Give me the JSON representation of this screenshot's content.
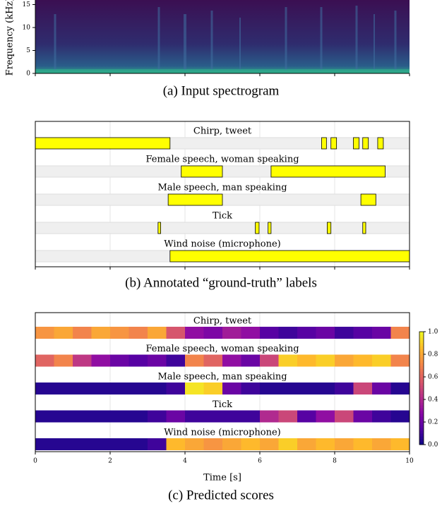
{
  "chart_data": [
    {
      "type": "spectrogram",
      "caption": "(a) Input spectrogram",
      "y_label": "Frequency (kHz)",
      "xlim": [
        0,
        10
      ],
      "xticks": [
        0,
        2,
        4,
        6,
        8,
        10
      ],
      "ylim": [
        0,
        16
      ],
      "yticks": [
        0,
        5,
        10,
        15
      ]
    },
    {
      "type": "segments",
      "caption": "(b) Annotated “ground-truth” labels",
      "color": "#ffff00",
      "xlim": [
        0,
        10
      ],
      "xticks": [
        0,
        2,
        4,
        6,
        8,
        10
      ],
      "classes": [
        {
          "name": "Chirp, tweet",
          "segments": [
            [
              0,
              3.6
            ],
            [
              7.65,
              7.78
            ],
            [
              7.9,
              8.05
            ],
            [
              8.5,
              8.65
            ],
            [
              8.75,
              8.9
            ],
            [
              9.15,
              9.3
            ]
          ]
        },
        {
          "name": "Female speech, woman speaking",
          "segments": [
            [
              3.9,
              5.0
            ],
            [
              6.3,
              9.35
            ]
          ]
        },
        {
          "name": "Male speech, man speaking",
          "segments": [
            [
              3.55,
              5.0
            ],
            [
              8.7,
              9.1
            ]
          ]
        },
        {
          "name": "Tick",
          "segments": [
            [
              3.28,
              3.35
            ],
            [
              5.88,
              5.98
            ],
            [
              6.22,
              6.3
            ],
            [
              7.8,
              7.9
            ],
            [
              8.75,
              8.83
            ]
          ]
        },
        {
          "name": "Wind noise (microphone)",
          "segments": [
            [
              3.6,
              10
            ]
          ]
        }
      ]
    },
    {
      "type": "heatmap",
      "caption": "(c) Predicted scores",
      "x_label": "Time [s]",
      "xlim": [
        0,
        10
      ],
      "xticks": [
        0,
        2,
        4,
        6,
        8,
        10
      ],
      "classes": [
        {
          "name": "Chirp, tweet",
          "values": [
            0.75,
            0.8,
            0.7,
            0.8,
            0.75,
            0.7,
            0.8,
            0.55,
            0.3,
            0.25,
            0.35,
            0.3,
            0.15,
            0.1,
            0.15,
            0.2,
            0.1,
            0.15,
            0.2,
            0.7
          ]
        },
        {
          "name": "Female speech, woman speaking",
          "values": [
            0.6,
            0.7,
            0.45,
            0.3,
            0.2,
            0.15,
            0.2,
            0.1,
            0.7,
            0.6,
            0.3,
            0.2,
            0.5,
            0.9,
            0.85,
            0.9,
            0.8,
            0.85,
            0.9,
            0.7
          ]
        },
        {
          "name": "Male speech, man speaking",
          "values": [
            0.05,
            0.05,
            0.05,
            0.05,
            0.05,
            0.05,
            0.05,
            0.1,
            0.95,
            0.9,
            0.2,
            0.1,
            0.05,
            0.05,
            0.05,
            0.05,
            0.1,
            0.5,
            0.2,
            0.05
          ]
        },
        {
          "name": "Tick",
          "values": [
            0.05,
            0.05,
            0.05,
            0.05,
            0.05,
            0.05,
            0.1,
            0.2,
            0.1,
            0.1,
            0.1,
            0.1,
            0.4,
            0.5,
            0.15,
            0.3,
            0.5,
            0.2,
            0.1,
            0.05
          ]
        },
        {
          "name": "Wind noise (microphone)",
          "values": [
            0.05,
            0.05,
            0.05,
            0.05,
            0.05,
            0.05,
            0.1,
            0.85,
            0.8,
            0.75,
            0.8,
            0.85,
            0.8,
            0.9,
            0.8,
            0.85,
            0.8,
            0.85,
            0.8,
            0.85
          ]
        }
      ],
      "colorbar_lim": [
        0,
        1
      ],
      "colorbar_ticks": [
        {
          "value": 0,
          "label": "0.0"
        },
        0.2,
        0.4,
        0.6,
        0.8,
        {
          "value": 1,
          "label": "1.0"
        }
      ]
    }
  ]
}
